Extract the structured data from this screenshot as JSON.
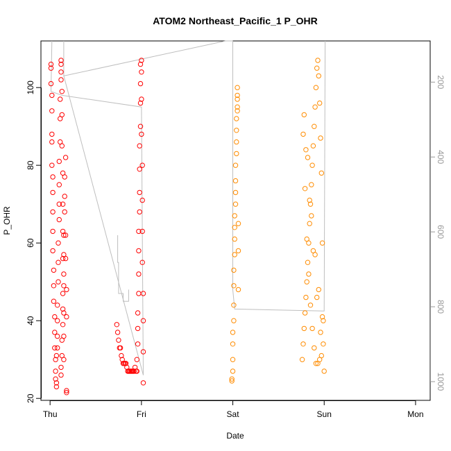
{
  "chart_data": {
    "type": "scatter",
    "title": "ATOM2 Northeast_Pacific_1 P_OHR",
    "xlabel": "Date",
    "ylabel": "P_OHR",
    "x_ticks": [
      "Thu",
      "Fri",
      "Sat",
      "Sun",
      "Mon"
    ],
    "xlim": [
      -0.1,
      4.16
    ],
    "ylim": [
      19.5,
      112
    ],
    "y_ticks": [
      20,
      40,
      60,
      80,
      100
    ],
    "y2_ticks": [
      200,
      400,
      600,
      800,
      1000
    ],
    "y2lim": [
      1050,
      90
    ],
    "grid": false,
    "legend": "none",
    "colors": {
      "day1": "#ff0000",
      "day2": "#ff0000",
      "day4": "#ff8c00",
      "day5": "#ff8c00",
      "profile_line": "#bebebe",
      "secondary_axis": "#999999"
    },
    "series": [
      {
        "color": "#ff0000",
        "x": [
          0.01,
          0.01,
          0.01,
          0.02,
          0.02,
          0.02,
          0.02,
          0.02,
          0.03,
          0.03,
          0.03,
          0.03,
          0.03,
          0.04,
          0.04,
          0.04,
          0.05,
          0.05,
          0.05,
          0.06,
          0.06,
          0.06,
          0.07,
          0.07,
          0.07,
          0.08,
          0.08,
          0.08,
          0.08,
          0.09,
          0.09,
          0.09,
          0.1,
          0.1,
          0.1,
          0.1,
          0.11,
          0.11,
          0.11,
          0.12,
          0.12,
          0.12,
          0.12,
          0.13,
          0.13,
          0.13,
          0.14,
          0.14,
          0.14,
          0.14,
          0.15,
          0.15,
          0.15,
          0.15
        ],
        "y": [
          106,
          105,
          101,
          98,
          94,
          88,
          86,
          80,
          77,
          73,
          68,
          63,
          58,
          53,
          49,
          45,
          41,
          37,
          33,
          30,
          27,
          25,
          23,
          24,
          31,
          33,
          36,
          40,
          44,
          50,
          55,
          60,
          66,
          70,
          75,
          81,
          86,
          92,
          97,
          102,
          106,
          107,
          104,
          99,
          93,
          85,
          78,
          70,
          63,
          56,
          49,
          42,
          36,
          30
        ]
      },
      {
        "color": "#ff0000",
        "x": [
          0.12,
          0.12,
          0.13,
          0.13,
          0.14,
          0.14,
          0.14,
          0.15,
          0.15,
          0.15,
          0.16,
          0.16,
          0.16,
          0.17,
          0.17,
          0.17,
          0.18,
          0.18,
          0.18,
          0.18
        ],
        "y": [
          26,
          28,
          31,
          35,
          39,
          43,
          47,
          52,
          57,
          62,
          68,
          72,
          77,
          82,
          62,
          56,
          48,
          41,
          22,
          21.5
        ]
      },
      {
        "color": "#ff0000",
        "x": [
          0.73,
          0.74,
          0.75,
          0.76,
          0.77,
          0.78,
          0.79,
          0.8,
          0.81,
          0.82,
          0.83,
          0.84,
          0.85,
          0.86,
          0.87,
          0.88,
          0.89,
          0.9,
          0.91,
          0.92,
          0.93,
          0.94,
          0.95,
          0.95,
          0.96,
          0.96,
          0.96,
          0.97,
          0.97,
          0.97,
          0.97,
          0.98,
          0.98,
          0.98,
          0.98,
          0.99,
          0.99,
          0.99,
          0.99,
          1.0,
          1.0,
          1.0,
          1.0,
          1.01,
          1.01,
          1.01,
          1.01,
          1.02,
          1.02,
          1.02,
          1.02
        ],
        "y": [
          39,
          37,
          35,
          33,
          33,
          31,
          30,
          29,
          29,
          29,
          29,
          28,
          27,
          27,
          27,
          27,
          27,
          27,
          27,
          27,
          28,
          27,
          27,
          30,
          34,
          38,
          42,
          47,
          52,
          58,
          63,
          68,
          73,
          79,
          85,
          90,
          96,
          101,
          106,
          107,
          104,
          97,
          88,
          80,
          71,
          63,
          55,
          47,
          40,
          32,
          24
        ]
      },
      {
        "color": "#ff8c00",
        "x": [
          1.99,
          1.99,
          2.0,
          2.0,
          2.0,
          2.0,
          2.01,
          2.01,
          2.01,
          2.01,
          2.02,
          2.02,
          2.02,
          2.02,
          2.03,
          2.03,
          2.03,
          2.03,
          2.04,
          2.04,
          2.04,
          2.04,
          2.05,
          2.05,
          2.05,
          2.05,
          2.05,
          2.06,
          2.06,
          2.06
        ],
        "y": [
          25,
          24.5,
          27,
          30,
          34,
          37,
          40,
          44,
          49,
          53,
          57,
          61,
          64,
          67,
          70,
          73,
          76,
          80,
          83,
          86,
          89,
          92,
          95,
          98,
          100,
          97,
          94,
          65,
          58,
          48
        ]
      },
      {
        "color": "#ff8c00",
        "x": [
          2.76,
          2.77,
          2.78,
          2.79,
          2.8,
          2.81,
          2.82,
          2.83,
          2.84,
          2.85,
          2.86,
          2.87,
          2.88,
          2.89,
          2.9,
          2.91,
          2.92,
          2.93,
          2.94,
          2.95,
          2.96,
          2.97,
          2.98,
          2.99,
          3.0,
          2.77,
          2.79,
          2.81,
          2.83,
          2.85,
          2.87,
          2.89,
          2.91,
          2.93,
          2.95,
          2.97,
          2.99,
          2.78,
          2.82,
          2.86,
          2.9,
          2.94,
          2.98,
          2.8,
          2.84,
          2.88,
          2.92,
          2.96
        ],
        "y": [
          30,
          34,
          38,
          42,
          46,
          50,
          55,
          60,
          65,
          70,
          75,
          80,
          85,
          90,
          95,
          100,
          105,
          107,
          103,
          96,
          87,
          78,
          60,
          40,
          27,
          88,
          74,
          61,
          52,
          44,
          38,
          33,
          29,
          29,
          30,
          31,
          34,
          93,
          82,
          67,
          57,
          48,
          41,
          84,
          71,
          58,
          46,
          37
        ]
      }
    ],
    "profile_lines": [
      {
        "x": [
          0.02,
          0.01,
          0.13,
          1.0,
          1.02,
          0.15,
          0.15
        ],
        "y": [
          112,
          99,
          98,
          95,
          26,
          103,
          112
        ]
      },
      {
        "x": [
          0.15,
          1.92,
          2.0
        ],
        "y": [
          103,
          112,
          112
        ]
      },
      {
        "x": [
          0.74,
          0.74,
          0.75,
          0.75,
          0.8,
          0.8,
          0.86,
          0.86
        ],
        "y": [
          62,
          55,
          55,
          47,
          47,
          45,
          45,
          48
        ]
      },
      {
        "x": [
          2.0,
          2.0,
          2.02,
          3.0,
          3.01
        ],
        "y": [
          112,
          48,
          43,
          42.5,
          112
        ]
      }
    ]
  }
}
